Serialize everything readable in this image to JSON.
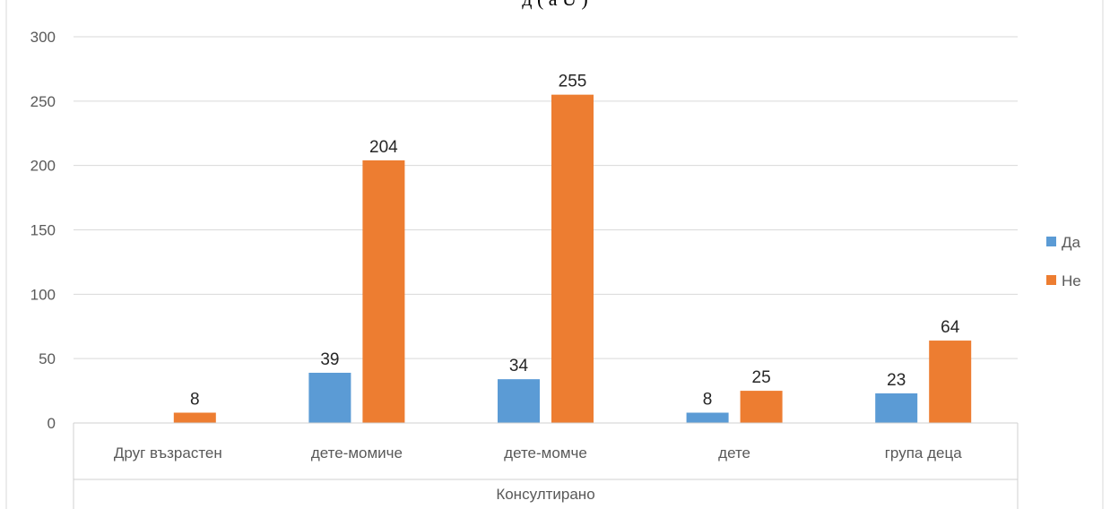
{
  "chart_data": {
    "type": "bar",
    "title_fragment": "д (               ä        Ū )",
    "categories": [
      "Друг възрастен",
      "дете-момиче",
      "дете-момче",
      "дете",
      "група деца"
    ],
    "group_label": "Консултирано",
    "series": [
      {
        "name": "Да",
        "color": "#5B9BD5",
        "values": [
          null,
          39,
          34,
          8,
          23
        ],
        "labels": [
          "",
          "39",
          "34",
          "8",
          "23"
        ]
      },
      {
        "name": "Не",
        "color": "#ED7D31",
        "values": [
          8,
          204,
          255,
          25,
          64
        ],
        "labels": [
          "8",
          "204",
          "255",
          "25",
          "64"
        ]
      }
    ],
    "yticks": [
      "0",
      "50",
      "100",
      "150",
      "200",
      "250",
      "300"
    ],
    "ylim": [
      0,
      300
    ],
    "grid": true,
    "legend_position": "right"
  }
}
